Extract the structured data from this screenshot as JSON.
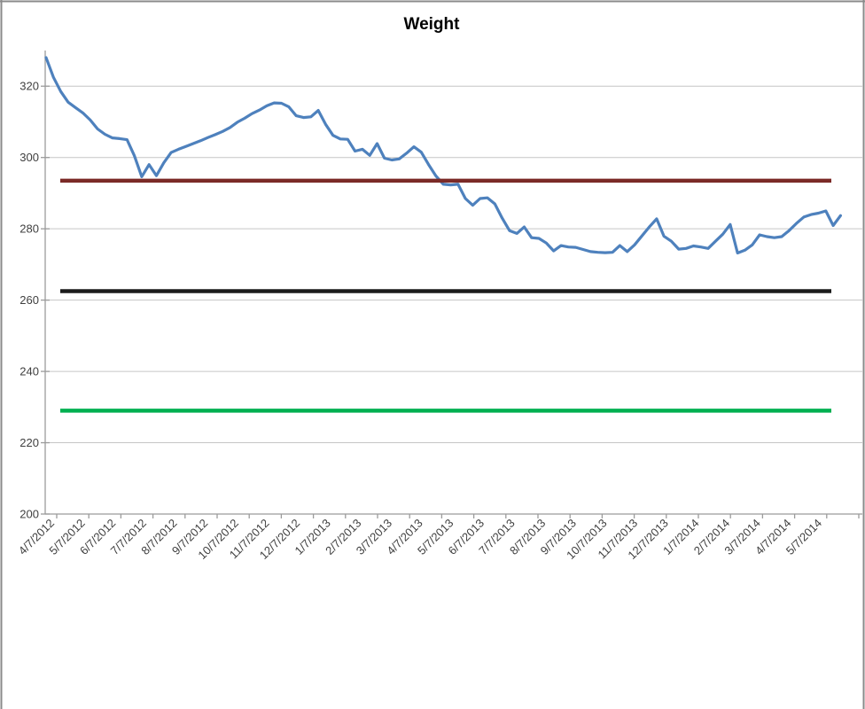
{
  "chart_data": {
    "type": "line",
    "title": "Weight",
    "xlabel": "",
    "ylabel": "",
    "ylim": [
      200,
      330
    ],
    "y_ticks": [
      200,
      220,
      240,
      260,
      280,
      300,
      320
    ],
    "grid": "horizontal-major",
    "legend": "none",
    "x_tick_labels": [
      "4/7/2012",
      "5/7/2012",
      "6/7/2012",
      "7/7/2012",
      "8/7/2012",
      "9/7/2012",
      "10/7/2012",
      "11/7/2012",
      "12/7/2012",
      "1/7/2013",
      "2/7/2013",
      "3/7/2013",
      "4/7/2013",
      "5/7/2013",
      "6/7/2013",
      "7/7/2013",
      "8/7/2013",
      "9/7/2013",
      "10/7/2013",
      "11/7/2013",
      "12/7/2013",
      "1/7/2014",
      "2/7/2014",
      "3/7/2014",
      "4/7/2014",
      "5/7/2014"
    ],
    "series": [
      {
        "name": "Weight",
        "color": "#4E81BD",
        "cadence": "weekly starting 4/7/2012",
        "values": [
          328,
          322.5,
          318.5,
          315.5,
          314,
          312.5,
          310.5,
          308,
          306.5,
          305.5,
          305.3,
          305,
          300.5,
          294.6,
          298,
          294.9,
          298.5,
          301.4,
          302.3,
          303.1,
          303.9,
          304.7,
          305.6,
          306.4,
          307.3,
          308.4,
          309.9,
          311,
          312.3,
          313.3,
          314.5,
          315.3,
          315.2,
          314.2,
          311.7,
          311.2,
          311.4,
          313.2,
          309.3,
          306.2,
          305.2,
          305.1,
          301.8,
          302.3,
          300.6,
          303.9,
          299.8,
          299.3,
          299.6,
          301.2,
          303,
          301.5,
          298,
          294.8,
          292.5,
          292.3,
          292.5,
          288.5,
          286.6,
          288.5,
          288.7,
          287,
          283,
          279.5,
          278.7,
          280.5,
          277.5,
          277.3,
          276,
          273.8,
          275.3,
          274.9,
          274.8,
          274.2,
          273.6,
          273.4,
          273.3,
          273.4,
          275.3,
          273.6,
          275.5,
          278,
          280.5,
          282.8,
          277.9,
          276.5,
          274.3,
          274.5,
          275.2,
          274.9,
          274.5,
          276.5,
          278.5,
          281.2,
          273.2,
          274,
          275.5,
          278.3,
          277.8,
          277.5,
          277.8,
          279.5,
          281.5,
          283.3,
          284,
          284.4,
          285,
          280.9,
          283.7
        ]
      }
    ],
    "reference_lines": [
      {
        "name": "upper-goal-line",
        "color": "#7B2A27",
        "value": 293.5
      },
      {
        "name": "middle-goal-line",
        "color": "#1C1C1C",
        "value": 262.5
      },
      {
        "name": "lower-goal-line",
        "color": "#00B050",
        "value": 229
      }
    ],
    "colors": {
      "axis_label": "#3F3F3F",
      "gridline": "#C6C6C6",
      "axis_line": "#9B9B9B",
      "chart_border": "#8A8A8A",
      "background": "#FFFFFF"
    }
  }
}
